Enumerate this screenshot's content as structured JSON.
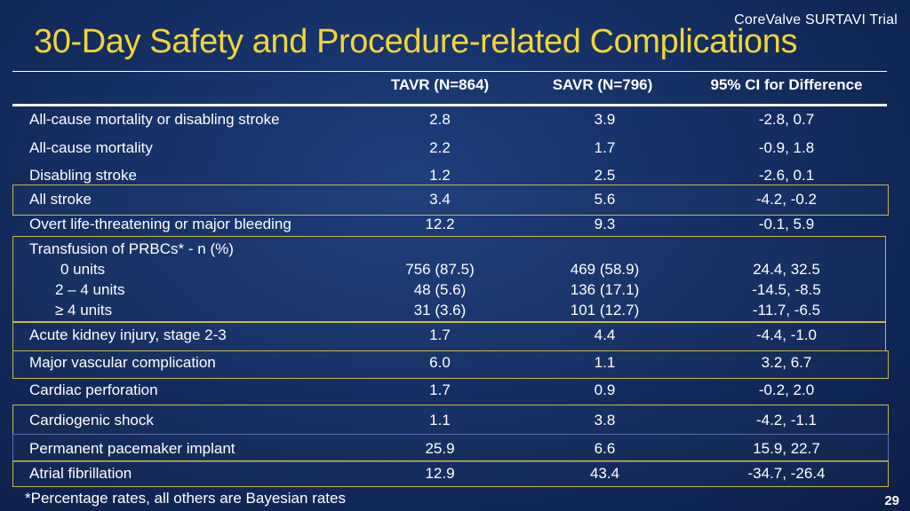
{
  "brand": "CoreValve SURTAVI Trial",
  "title": "30-Day Safety and Procedure-related Complications",
  "headers": {
    "tavr": "TAVR (N=864)",
    "savr": "SAVR (N=796)",
    "ci": "95% CI for Difference"
  },
  "rows": [
    {
      "label": "All-cause mortality or disabling stroke",
      "tavr": "2.8",
      "savr": "3.9",
      "ci": "-2.8, 0.7"
    },
    {
      "label": "All-cause mortality",
      "tavr": "2.2",
      "savr": "1.7",
      "ci": "-0.9, 1.8"
    },
    {
      "label": "Disabling stroke",
      "tavr": "1.2",
      "savr": "2.5",
      "ci": "-2.6, 0.1"
    },
    {
      "label": "All stroke",
      "tavr": "3.4",
      "savr": "5.6",
      "ci": "-4.2, -0.2"
    },
    {
      "label": "Overt  life-threatening or major bleeding",
      "tavr": "12.2",
      "savr": "9.3",
      "ci": "-0.1, 5.9"
    },
    {
      "label": "Transfusion of PRBCs* - n (%)",
      "tavr": "",
      "savr": "",
      "ci": ""
    },
    {
      "label": "0 units",
      "tavr": "756 (87.5)",
      "savr": "469 (58.9)",
      "ci": "24.4, 32.5"
    },
    {
      "label": "2 – 4 units",
      "tavr": "48 (5.6)",
      "savr": "136 (17.1)",
      "ci": "-14.5, -8.5"
    },
    {
      "label": "≥ 4 units",
      "tavr": "31 (3.6)",
      "savr": "101 (12.7)",
      "ci": "-11.7, -6.5"
    },
    {
      "label": "Acute kidney injury, stage 2-3",
      "tavr": "1.7",
      "savr": "4.4",
      "ci": "-4.4, -1.0"
    },
    {
      "label": "Major vascular complication",
      "tavr": "6.0",
      "savr": "1.1",
      "ci": "3.2, 6.7"
    },
    {
      "label": "Cardiac perforation",
      "tavr": "1.7",
      "savr": "0.9",
      "ci": "-0.2, 2.0"
    },
    {
      "label": "Cardiogenic shock",
      "tavr": "1.1",
      "savr": "3.8",
      "ci": "-4.2, -1.1"
    },
    {
      "label": "Permanent pacemaker implant",
      "tavr": "25.9",
      "savr": "6.6",
      "ci": "15.9, 22.7"
    },
    {
      "label": "Atrial fibrillation",
      "tavr": "12.9",
      "savr": "43.4",
      "ci": "-34.7, -26.4"
    }
  ],
  "footnote": "*Percentage rates, all others are Bayesian rates",
  "page_number": "29",
  "colors": {
    "title": "#f2d43a",
    "highlight_box": "#c9b84a",
    "background": "#142f63"
  }
}
